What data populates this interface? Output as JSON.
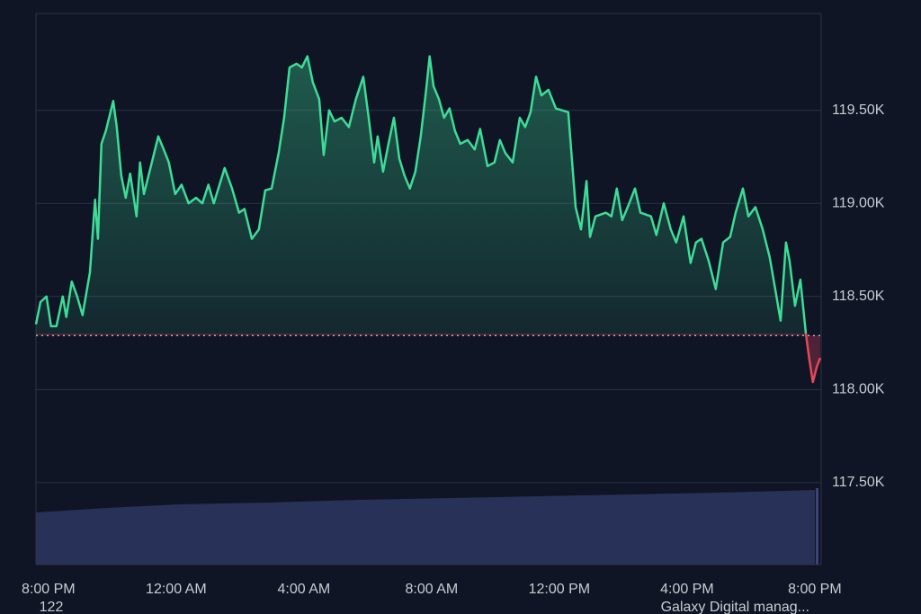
{
  "chart_data": {
    "type": "line",
    "x": [
      -0.39,
      -0.25,
      -0.06,
      0.08,
      0.25,
      0.45,
      0.56,
      0.73,
      0.9,
      1.07,
      1.3,
      1.46,
      1.55,
      1.66,
      1.8,
      2.03,
      2.14,
      2.28,
      2.42,
      2.56,
      2.76,
      2.87,
      2.99,
      3.21,
      3.44,
      3.61,
      3.77,
      3.97,
      4.17,
      4.39,
      4.62,
      4.82,
      5.01,
      5.18,
      5.52,
      5.75,
      5.97,
      6.14,
      6.37,
      6.59,
      6.79,
      6.99,
      7.21,
      7.38,
      7.55,
      7.77,
      7.94,
      8.11,
      8.28,
      8.48,
      8.62,
      8.79,
      8.96,
      9.18,
      9.41,
      9.63,
      9.86,
      10.03,
      10.2,
      10.31,
      10.48,
      10.65,
      10.82,
      10.99,
      11.15,
      11.32,
      11.49,
      11.66,
      11.83,
      11.94,
      12.06,
      12.23,
      12.39,
      12.56,
      12.73,
      12.9,
      13.13,
      13.35,
      13.52,
      13.75,
      13.97,
      14.14,
      14.31,
      14.54,
      14.76,
      14.93,
      15.1,
      15.27,
      15.44,
      15.66,
      15.89,
      16.28,
      16.51,
      16.68,
      16.85,
      16.96,
      17.13,
      17.46,
      17.63,
      17.8,
      17.97,
      18.14,
      18.37,
      18.54,
      18.87,
      19.04,
      19.27,
      19.49,
      19.66,
      19.89,
      20.11,
      20.28,
      20.45,
      20.68,
      20.9,
      21.13,
      21.35,
      21.52,
      21.75,
      21.92,
      22.14,
      22.37,
      22.59,
      22.76,
      22.93,
      23.1,
      23.21,
      23.38,
      23.55,
      23.72,
      23.83,
      23.94,
      24.06,
      24.17
    ],
    "series": [
      {
        "color": "#3ddc97",
        "negative_color": "#e5475c",
        "values": [
          118.35,
          118.47,
          118.5,
          118.34,
          118.34,
          118.5,
          118.39,
          118.58,
          118.5,
          118.4,
          118.63,
          119.02,
          118.81,
          119.32,
          119.39,
          119.55,
          119.41,
          119.15,
          119.03,
          119.16,
          118.93,
          119.22,
          119.05,
          119.2,
          119.36,
          119.29,
          119.22,
          119.05,
          119.1,
          119.0,
          119.03,
          119.0,
          119.1,
          119.0,
          119.19,
          119.08,
          118.95,
          118.97,
          118.81,
          118.86,
          119.07,
          119.08,
          119.27,
          119.46,
          119.73,
          119.75,
          119.73,
          119.79,
          119.65,
          119.56,
          119.26,
          119.5,
          119.44,
          119.46,
          119.41,
          119.56,
          119.68,
          119.46,
          119.22,
          119.36,
          119.17,
          119.32,
          119.46,
          119.24,
          119.15,
          119.08,
          119.17,
          119.36,
          119.61,
          119.79,
          119.63,
          119.56,
          119.46,
          119.51,
          119.39,
          119.32,
          119.34,
          119.29,
          119.4,
          119.2,
          119.22,
          119.34,
          119.27,
          119.22,
          119.46,
          119.41,
          119.49,
          119.68,
          119.58,
          119.61,
          119.51,
          119.49,
          118.98,
          118.86,
          119.12,
          118.82,
          118.93,
          118.95,
          118.93,
          119.08,
          118.91,
          118.98,
          119.08,
          118.95,
          118.93,
          118.83,
          119.0,
          118.86,
          118.79,
          118.93,
          118.68,
          118.79,
          118.81,
          118.69,
          118.54,
          118.79,
          118.82,
          118.95,
          119.08,
          118.93,
          118.98,
          118.86,
          118.71,
          118.54,
          118.37,
          118.79,
          118.69,
          118.45,
          118.59,
          118.3,
          118.16,
          118.04,
          118.12,
          118.17
        ]
      }
    ],
    "baseline": 118.29,
    "xlim": [
      -0.39,
      24.2
    ],
    "xticks": [
      {
        "value": 0,
        "label": "8:00 PM"
      },
      {
        "value": 4,
        "label": "12:00 AM"
      },
      {
        "value": 8,
        "label": "4:00 AM"
      },
      {
        "value": 12,
        "label": "8:00 AM"
      },
      {
        "value": 16,
        "label": "12:00 PM"
      },
      {
        "value": 20,
        "label": "4:00 PM"
      },
      {
        "value": 24,
        "label": "8:00 PM"
      }
    ],
    "ylim": [
      117.06,
      120.02
    ],
    "yticks": [
      {
        "value": 117.5,
        "label": "117.50K"
      },
      {
        "value": 118,
        "label": "118.00K"
      },
      {
        "value": 118.5,
        "label": "118.50K"
      },
      {
        "value": 119,
        "label": "119.00K"
      },
      {
        "value": 119.5,
        "label": "119.50K"
      }
    ],
    "grid": true,
    "footer_texts": [
      "122",
      "Galaxy Digital manag..."
    ]
  }
}
